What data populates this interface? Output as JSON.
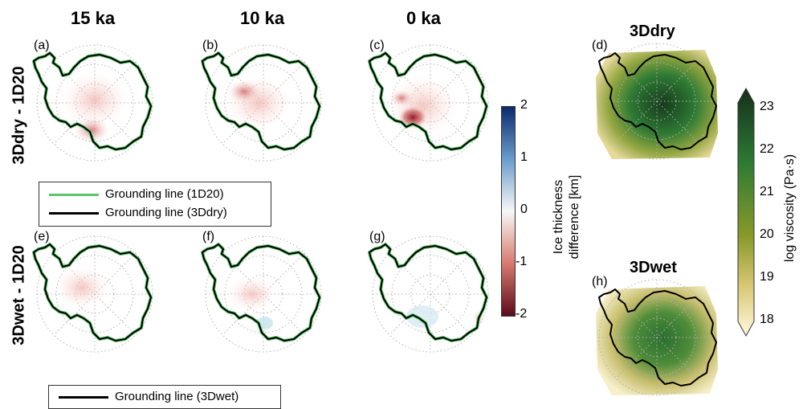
{
  "columns": [
    "15 ka",
    "10 ka",
    "0 ka"
  ],
  "rows": [
    "3Ddry - 1D20",
    "3Dwet - 1D20"
  ],
  "panel_labels": [
    "(a)",
    "(b)",
    "(c)",
    "(d)",
    "(e)",
    "(f)",
    "(g)",
    "(h)"
  ],
  "legend_top": {
    "green": "Grounding line (1D20)",
    "black": "Grounding line (3Ddry)"
  },
  "legend_bottom": {
    "black": "Grounding line (3Dwet)"
  },
  "thickness_colorbar": {
    "ticks": [
      "2",
      "1",
      "0",
      "-1",
      "-2"
    ],
    "title_line1": "Ice thickness",
    "title_line2": "difference [km]"
  },
  "viscosity_titles": [
    "3Ddry",
    "3Dwet"
  ],
  "viscosity_colorbar": {
    "ticks": [
      "23",
      "22",
      "21",
      "20",
      "19",
      "18"
    ],
    "title": "log viscosity (Pa·s)"
  },
  "colors": {
    "grounding_1d20": "#5cc46a",
    "grounding_3d": "#000000",
    "positive": "#08306b",
    "negative": "#67001f",
    "visc_high": "#1b3a1d",
    "visc_low": "#fffbe0"
  }
}
